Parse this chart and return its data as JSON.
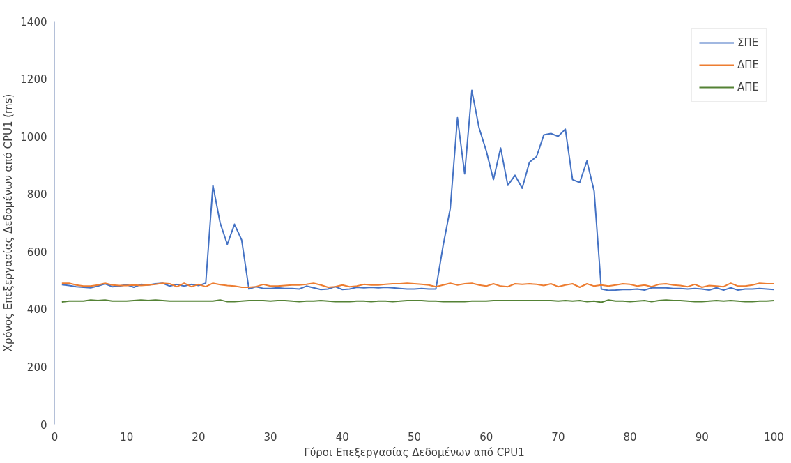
{
  "chart_data": {
    "type": "line",
    "xlabel": "Γύροι Επεξεργασίας Δεδομένων από CPU1",
    "ylabel": "Χρόνος Επεξεργασίας Δεδομένων από CPU1 (ms)",
    "x": [
      1,
      2,
      3,
      4,
      5,
      6,
      7,
      8,
      9,
      10,
      11,
      12,
      13,
      14,
      15,
      16,
      17,
      18,
      19,
      20,
      21,
      22,
      23,
      24,
      25,
      26,
      27,
      28,
      29,
      30,
      31,
      32,
      33,
      34,
      35,
      36,
      37,
      38,
      39,
      40,
      41,
      42,
      43,
      44,
      45,
      46,
      47,
      48,
      49,
      50,
      51,
      52,
      53,
      54,
      55,
      56,
      57,
      58,
      59,
      60,
      61,
      62,
      63,
      64,
      65,
      66,
      67,
      68,
      69,
      70,
      71,
      72,
      73,
      74,
      75,
      76,
      77,
      78,
      79,
      80,
      81,
      82,
      83,
      84,
      85,
      86,
      87,
      88,
      89,
      90,
      91,
      92,
      93,
      94,
      95,
      96,
      97,
      98,
      99,
      100
    ],
    "series": [
      {
        "name": "ΣΠΕ",
        "color": "#4472c4",
        "values": [
          485,
          482,
          478,
          476,
          474,
          480,
          488,
          478,
          480,
          485,
          476,
          486,
          484,
          488,
          490,
          480,
          486,
          480,
          486,
          482,
          490,
          830,
          700,
          625,
          695,
          640,
          470,
          478,
          472,
          472,
          474,
          472,
          472,
          470,
          480,
          474,
          468,
          470,
          478,
          468,
          470,
          476,
          474,
          476,
          474,
          476,
          474,
          472,
          470,
          470,
          472,
          470,
          470,
          620,
          750,
          1065,
          870,
          1160,
          1030,
          950,
          850,
          960,
          830,
          865,
          820,
          910,
          930,
          1005,
          1010,
          1000,
          1025,
          850,
          840,
          915,
          810,
          470,
          465,
          466,
          468,
          468,
          470,
          466,
          474,
          474,
          474,
          472,
          472,
          470,
          472,
          470,
          466,
          474,
          466,
          474,
          466,
          470,
          470,
          472,
          470,
          468
        ]
      },
      {
        "name": "ΔΠΕ",
        "color": "#ed7d31",
        "values": [
          490,
          490,
          484,
          480,
          480,
          484,
          490,
          484,
          482,
          482,
          484,
          482,
          484,
          486,
          490,
          488,
          478,
          490,
          478,
          486,
          478,
          490,
          485,
          482,
          480,
          476,
          476,
          478,
          486,
          480,
          480,
          482,
          484,
          484,
          486,
          490,
          484,
          476,
          478,
          484,
          478,
          480,
          486,
          484,
          484,
          486,
          488,
          488,
          490,
          488,
          486,
          484,
          478,
          484,
          490,
          484,
          488,
          490,
          484,
          480,
          488,
          480,
          478,
          488,
          486,
          488,
          486,
          482,
          488,
          478,
          484,
          488,
          476,
          488,
          480,
          484,
          480,
          484,
          488,
          486,
          480,
          484,
          478,
          486,
          488,
          484,
          482,
          478,
          486,
          476,
          482,
          480,
          478,
          490,
          480,
          480,
          484,
          490,
          488,
          488
        ]
      },
      {
        "name": "ΑΠΕ",
        "color": "#548235",
        "values": [
          425,
          428,
          428,
          428,
          432,
          430,
          432,
          428,
          428,
          428,
          430,
          432,
          430,
          432,
          430,
          428,
          428,
          428,
          428,
          428,
          428,
          428,
          432,
          426,
          426,
          428,
          430,
          430,
          430,
          428,
          430,
          430,
          428,
          426,
          428,
          428,
          430,
          428,
          426,
          426,
          426,
          428,
          428,
          426,
          428,
          428,
          426,
          428,
          430,
          430,
          430,
          428,
          428,
          426,
          426,
          426,
          426,
          428,
          428,
          428,
          430,
          430,
          430,
          430,
          430,
          430,
          430,
          430,
          430,
          428,
          430,
          428,
          430,
          426,
          428,
          424,
          432,
          428,
          428,
          426,
          428,
          430,
          426,
          430,
          432,
          430,
          430,
          428,
          426,
          426,
          428,
          430,
          428,
          430,
          428,
          426,
          426,
          428,
          428,
          430
        ]
      }
    ],
    "xlim": [
      0,
      100
    ],
    "xticks": [
      0,
      10,
      20,
      30,
      40,
      50,
      60,
      70,
      80,
      90,
      100
    ],
    "ylim": [
      0,
      1400
    ],
    "yticks": [
      0,
      200,
      400,
      600,
      800,
      1000,
      1200,
      1400
    ],
    "grid": false,
    "legend": "top right",
    "line_style": "solid",
    "marker": "none"
  }
}
